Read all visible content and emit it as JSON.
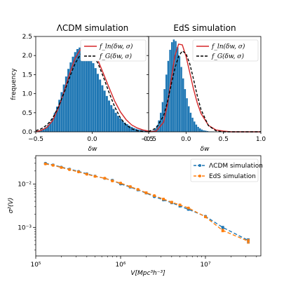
{
  "colors": {
    "histogram": "#1f77b4",
    "lognormal_curve": "#d62728",
    "gaussian_curve": "#000000",
    "series_lcdm": "#1f77b4",
    "series_eds": "#ff7f0e"
  },
  "chart_data": [
    {
      "type": "bar",
      "title": "ΛCDM simulation",
      "xlabel": "δw",
      "ylabel": "frequency",
      "xlim": [
        -0.5,
        0.5
      ],
      "ylim": [
        0,
        2.5
      ],
      "xticks": [
        "−0.5",
        "0.0",
        "0.5"
      ],
      "yticks": [
        "0.0",
        "0.5",
        "1.0",
        "1.5",
        "2.0",
        "2.5"
      ],
      "legend": [
        "f_ln(δw, σ)",
        "f_G(δw, σ)"
      ],
      "legend_position": "top-right",
      "histogram": {
        "bin_start": -0.5,
        "bin_width": 0.02,
        "values": [
          0.02,
          0.03,
          0.05,
          0.08,
          0.12,
          0.18,
          0.26,
          0.36,
          0.5,
          0.66,
          0.84,
          1.04,
          1.24,
          1.45,
          1.65,
          1.82,
          1.97,
          2.09,
          2.17,
          2.21,
          2.22,
          2.19,
          2.13,
          2.04,
          1.93,
          1.8,
          1.67,
          1.52,
          1.37,
          1.22,
          1.08,
          0.94,
          0.82,
          0.7,
          0.6,
          0.5,
          0.42,
          0.35,
          0.29,
          0.24,
          0.2,
          0.16,
          0.13,
          0.1,
          0.08,
          0.06,
          0.05,
          0.04,
          0.03,
          0.02
        ]
      },
      "series": [
        {
          "name": "f_ln(δw, σ)",
          "style": "solid",
          "x": [
            -0.5,
            -0.45,
            -0.4,
            -0.35,
            -0.3,
            -0.25,
            -0.2,
            -0.15,
            -0.1,
            -0.05,
            0.0,
            0.05,
            0.1,
            0.15,
            0.2,
            0.25,
            0.3,
            0.35,
            0.4,
            0.45,
            0.5
          ],
          "y": [
            0.0,
            0.04,
            0.12,
            0.3,
            0.62,
            1.05,
            1.52,
            1.93,
            2.18,
            2.26,
            2.15,
            1.88,
            1.52,
            1.15,
            0.8,
            0.52,
            0.32,
            0.18,
            0.1,
            0.05,
            0.02
          ]
        },
        {
          "name": "f_G(δw, σ)",
          "style": "dashed",
          "x": [
            -0.5,
            -0.45,
            -0.4,
            -0.35,
            -0.3,
            -0.25,
            -0.2,
            -0.15,
            -0.1,
            -0.05,
            0.0,
            0.05,
            0.1,
            0.15,
            0.2,
            0.25,
            0.3,
            0.35,
            0.4,
            0.45,
            0.5
          ],
          "y": [
            0.03,
            0.08,
            0.18,
            0.36,
            0.65,
            1.02,
            1.43,
            1.8,
            2.05,
            2.14,
            2.05,
            1.8,
            1.43,
            1.02,
            0.65,
            0.36,
            0.18,
            0.08,
            0.03,
            0.01,
            0.0
          ]
        }
      ]
    },
    {
      "type": "bar",
      "title": "EdS simulation",
      "xlabel": "δw",
      "xlim": [
        -0.5,
        1.0
      ],
      "ylim": [
        0,
        2.5
      ],
      "xticks": [
        "−0.5",
        "0.0",
        "0.5",
        "1.0"
      ],
      "legend": [
        "f_ln(δw, σ)",
        "f_G(δw, σ)"
      ],
      "legend_position": "top-right",
      "histogram": {
        "bin_start": -0.5,
        "bin_width": 0.025,
        "values": [
          0.01,
          0.02,
          0.04,
          0.08,
          0.16,
          0.3,
          0.5,
          0.78,
          1.12,
          1.5,
          1.86,
          2.15,
          2.35,
          2.42,
          2.38,
          2.22,
          1.98,
          1.7,
          1.4,
          1.12,
          0.88,
          0.67,
          0.5,
          0.37,
          0.27,
          0.19,
          0.13,
          0.09,
          0.06,
          0.04,
          0.03,
          0.02,
          0.01,
          0.01,
          0.01,
          0.0,
          0.0,
          0.0,
          0.0,
          0.0,
          0.0,
          0.0,
          0.0,
          0.0,
          0.0,
          0.0,
          0.0,
          0.0,
          0.0,
          0.0,
          0.0,
          0.0,
          0.0,
          0.0,
          0.0,
          0.0,
          0.0,
          0.0,
          0.0,
          0.0
        ]
      },
      "series": [
        {
          "name": "f_ln(δw, σ)",
          "style": "solid",
          "x": [
            -0.5,
            -0.4,
            -0.3,
            -0.25,
            -0.2,
            -0.15,
            -0.1,
            -0.05,
            0.0,
            0.05,
            0.1,
            0.15,
            0.2,
            0.3,
            0.4,
            0.5,
            0.6,
            0.8,
            1.0
          ],
          "y": [
            0.0,
            0.02,
            0.25,
            0.7,
            1.35,
            1.98,
            2.3,
            2.28,
            1.98,
            1.55,
            1.12,
            0.76,
            0.48,
            0.17,
            0.05,
            0.02,
            0.0,
            0.0,
            0.0
          ]
        },
        {
          "name": "f_G(δw, σ)",
          "style": "dashed",
          "x": [
            -0.5,
            -0.4,
            -0.3,
            -0.25,
            -0.2,
            -0.15,
            -0.1,
            -0.05,
            0.0,
            0.05,
            0.1,
            0.15,
            0.2,
            0.3,
            0.4,
            0.5,
            0.6,
            0.8,
            1.0
          ],
          "y": [
            0.01,
            0.1,
            0.42,
            0.78,
            1.22,
            1.66,
            1.98,
            2.12,
            2.05,
            1.78,
            1.38,
            0.95,
            0.58,
            0.16,
            0.03,
            0.0,
            0.0,
            0.0,
            0.0
          ]
        }
      ]
    },
    {
      "type": "line",
      "xlabel": "V[Mpc³h⁻³]",
      "ylabel": "σ²(V)",
      "xscale": "log",
      "yscale": "log",
      "xlim": [
        100000,
        45000000
      ],
      "ylim": [
        0.00022,
        0.045
      ],
      "xticks": [
        "10⁵",
        "10⁶",
        "10⁷"
      ],
      "yticks": [
        "10⁻³",
        "10⁻²"
      ],
      "legend_position": "top-right",
      "series": [
        {
          "name": "ΛCDM simulation",
          "x": [
            130000,
            160000,
            200000,
            250000,
            320000,
            400000,
            500000,
            650000,
            800000,
            1000000,
            1300000,
            1600000,
            2000000,
            2500000,
            3200000,
            4000000,
            5000000,
            6300000,
            10000000,
            16000000,
            32000000
          ],
          "y": [
            0.03,
            0.0275,
            0.0245,
            0.022,
            0.0195,
            0.0172,
            0.0152,
            0.0135,
            0.0122,
            0.01,
            0.0085,
            0.0073,
            0.0062,
            0.0051,
            0.0043,
            0.0037,
            0.0031,
            0.0026,
            0.0018,
            0.001,
            0.0005
          ],
          "err": [
            0.001,
            0.001,
            0.0008,
            0.0008,
            0.0007,
            0.0006,
            0.0006,
            0.0005,
            0.0005,
            0.0004,
            0.0004,
            0.0003,
            0.0003,
            0.0002,
            0.0002,
            0.0002,
            0.00015,
            0.00012,
            8e-05,
            6e-05,
            5e-05
          ]
        },
        {
          "name": "EdS simulation",
          "x": [
            130000,
            160000,
            200000,
            250000,
            320000,
            400000,
            500000,
            650000,
            800000,
            1000000,
            1300000,
            1600000,
            2000000,
            2500000,
            3200000,
            4000000,
            5000000,
            6300000,
            10000000,
            16000000,
            32000000
          ],
          "y": [
            0.029,
            0.027,
            0.024,
            0.0215,
            0.019,
            0.0168,
            0.015,
            0.0136,
            0.0118,
            0.0105,
            0.0087,
            0.0075,
            0.0063,
            0.0054,
            0.0045,
            0.0038,
            0.0033,
            0.0028,
            0.00175,
            0.00085,
            0.00048
          ],
          "err": [
            0.001,
            0.001,
            0.0008,
            0.0008,
            0.0007,
            0.0006,
            0.0006,
            0.0005,
            0.0005,
            0.0004,
            0.0004,
            0.0003,
            0.0003,
            0.0002,
            0.0002,
            0.0002,
            0.00015,
            0.00012,
            8e-05,
            6e-05,
            5e-05
          ]
        }
      ]
    }
  ]
}
